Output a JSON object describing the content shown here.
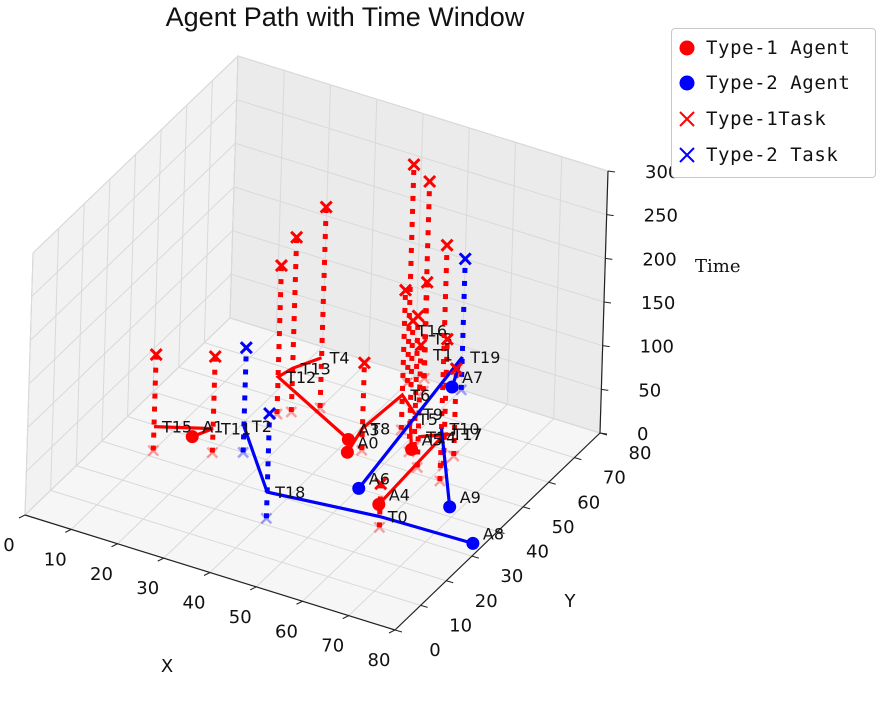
{
  "chart_data": {
    "type": "3d-line-scatter",
    "title": "Agent Path with Time Window",
    "xlabel": "X",
    "ylabel": "Y",
    "zlabel": "Time",
    "xlim": [
      0,
      80
    ],
    "ylim": [
      0,
      80
    ],
    "zlim": [
      0,
      300
    ],
    "xticks": [
      "0",
      "10",
      "20",
      "30",
      "40",
      "50",
      "60",
      "70",
      "80"
    ],
    "yticks": [
      "0",
      "10",
      "20",
      "30",
      "40",
      "50",
      "60",
      "70",
      "80"
    ],
    "zticks": [
      "0",
      "50",
      "100",
      "150",
      "200",
      "250",
      "300"
    ],
    "legend": [
      {
        "label": "Type-1 Agent",
        "marker": "dot",
        "color": "#ff0000"
      },
      {
        "label": "Type-2 Agent",
        "marker": "dot",
        "color": "#0000ff"
      },
      {
        "label": "Type-1Task",
        "marker": "x",
        "color": "#ff0000"
      },
      {
        "label": "Type-2 Task",
        "marker": "x",
        "color": "#0000ff"
      }
    ],
    "colors": {
      "type1": "#ff0000",
      "type2": "#0000ff"
    },
    "agents": [
      {
        "name": "A0",
        "type": 1,
        "x": 42,
        "y": 50,
        "z": 0
      },
      {
        "name": "A1",
        "type": 1,
        "x": 14,
        "y": 40,
        "z": 0
      },
      {
        "name": "A3",
        "type": 1,
        "x": 40,
        "y": 54,
        "z": 0
      },
      {
        "name": "A4",
        "type": 1,
        "x": 56,
        "y": 37,
        "z": 0
      },
      {
        "name": "A5",
        "type": 1,
        "x": 52,
        "y": 57,
        "z": 0
      },
      {
        "name": "A6",
        "type": 2,
        "x": 50,
        "y": 40,
        "z": 0
      },
      {
        "name": "A7",
        "type": 2,
        "x": 48,
        "y": 80,
        "z": 0
      },
      {
        "name": "A8",
        "type": 2,
        "x": 78,
        "y": 34,
        "z": 0
      },
      {
        "name": "A9",
        "type": 2,
        "x": 68,
        "y": 43,
        "z": 0
      }
    ],
    "tasks": [
      {
        "name": "T0",
        "type": 1,
        "x": 60,
        "y": 30,
        "z": 50
      },
      {
        "name": "T1",
        "type": 1,
        "x": 42,
        "y": 80,
        "z": 110
      },
      {
        "name": "T2",
        "type": 2,
        "x": 25,
        "y": 40,
        "z": 120
      },
      {
        "name": "T3",
        "type": 1,
        "x": 44,
        "y": 76,
        "z": 240
      },
      {
        "name": "T4",
        "type": 1,
        "x": 30,
        "y": 61,
        "z": 230
      },
      {
        "name": "T5",
        "type": 1,
        "x": 52,
        "y": 56,
        "z": 150
      },
      {
        "name": "T6",
        "type": 1,
        "x": 47,
        "y": 62,
        "z": 160
      },
      {
        "name": "T7",
        "type": 1,
        "x": 60,
        "y": 59,
        "z": 100
      },
      {
        "name": "T8",
        "type": 1,
        "x": 44,
        "y": 52,
        "z": 100
      },
      {
        "name": "T9",
        "type": 1,
        "x": 52,
        "y": 58,
        "z": 150
      },
      {
        "name": "T10",
        "type": 1,
        "x": 62,
        "y": 50,
        "z": 270
      },
      {
        "name": "T11",
        "type": 1,
        "x": 20,
        "y": 37,
        "z": 110
      },
      {
        "name": "T12",
        "type": 1,
        "x": 24,
        "y": 55,
        "z": 170
      },
      {
        "name": "T13",
        "type": 1,
        "x": 26,
        "y": 57,
        "z": 200
      },
      {
        "name": "T14",
        "type": 1,
        "x": 56,
        "y": 52,
        "z": 140
      },
      {
        "name": "T15",
        "type": 1,
        "x": 10,
        "y": 32,
        "z": 110
      },
      {
        "name": "T16",
        "type": 1,
        "x": 40,
        "y": 77,
        "z": 250
      },
      {
        "name": "T17",
        "type": 1,
        "x": 60,
        "y": 55,
        "z": 145
      },
      {
        "name": "T18",
        "type": 2,
        "x": 40,
        "y": 22,
        "z": 120
      },
      {
        "name": "T19",
        "type": 2,
        "x": 50,
        "y": 80,
        "z": 150
      }
    ],
    "paths": [
      {
        "type": 1,
        "nodes": [
          "A1",
          "T11",
          "T15"
        ]
      },
      {
        "type": 1,
        "nodes": [
          "A3",
          "T12",
          "T13",
          "T4"
        ]
      },
      {
        "type": 1,
        "nodes": [
          "A0",
          "T8",
          "T6",
          "T9"
        ]
      },
      {
        "type": 1,
        "nodes": [
          "A5",
          "T5"
        ]
      },
      {
        "type": 1,
        "nodes": [
          "A4",
          "T17",
          "T14",
          "T7"
        ]
      },
      {
        "type": 2,
        "nodes": [
          "A6",
          "T19",
          "A7"
        ]
      },
      {
        "type": 2,
        "nodes": [
          "A8",
          "T0",
          "T18",
          "T2"
        ]
      },
      {
        "type": 2,
        "nodes": [
          "A9",
          "T10"
        ]
      }
    ]
  }
}
